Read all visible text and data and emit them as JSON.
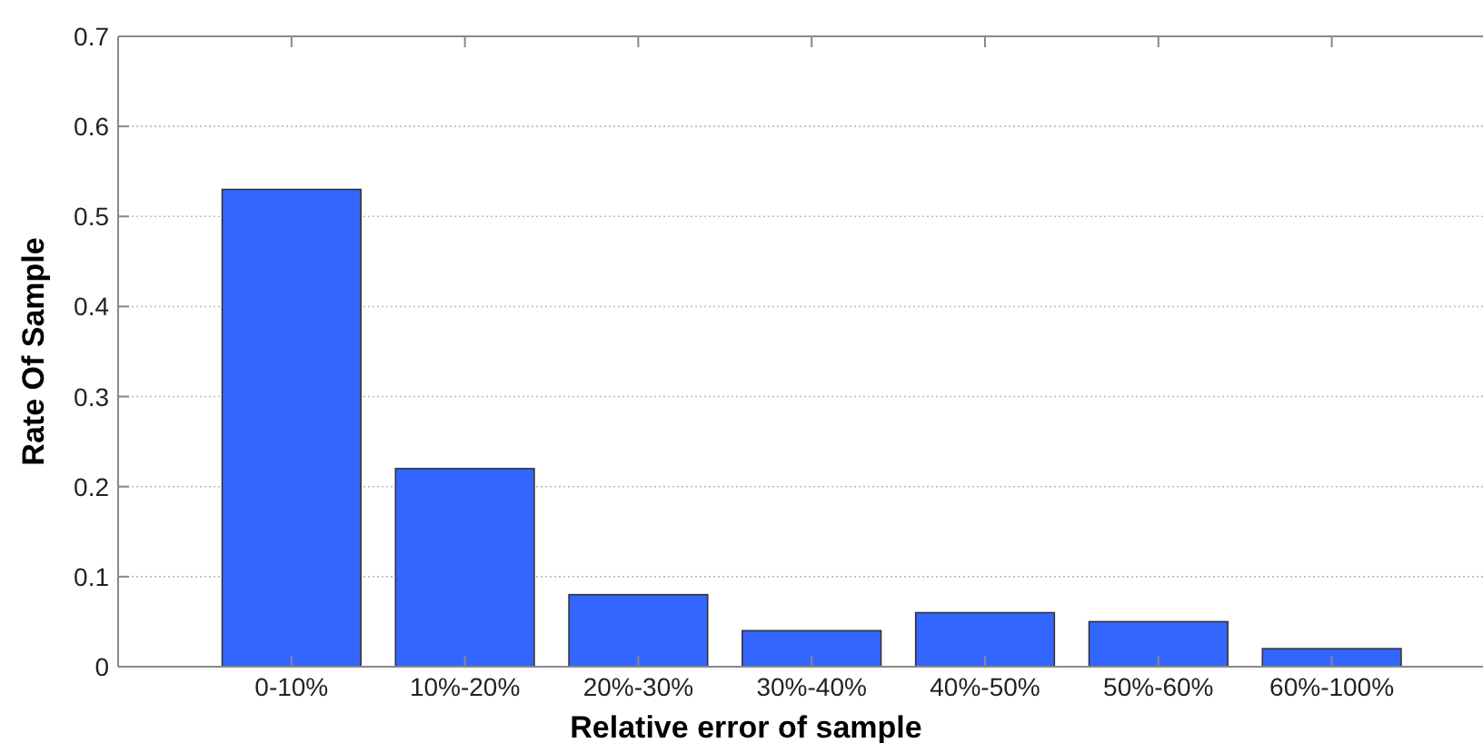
{
  "chart_data": {
    "type": "bar",
    "xlabel": "Relative error of sample",
    "ylabel": "Rate Of Sample",
    "categories": [
      "0-10%",
      "10%-20%",
      "20%-30%",
      "30%-40%",
      "40%-50%",
      "50%-60%",
      "60%-100%"
    ],
    "values": [
      0.53,
      0.22,
      0.08,
      0.04,
      0.06,
      0.05,
      0.02
    ],
    "color": "#3366ff",
    "ylim": [
      0,
      0.7
    ],
    "yticks": [
      0,
      0.1,
      0.2,
      0.3,
      0.4,
      0.5,
      0.6,
      0.7
    ],
    "grid": "y"
  }
}
